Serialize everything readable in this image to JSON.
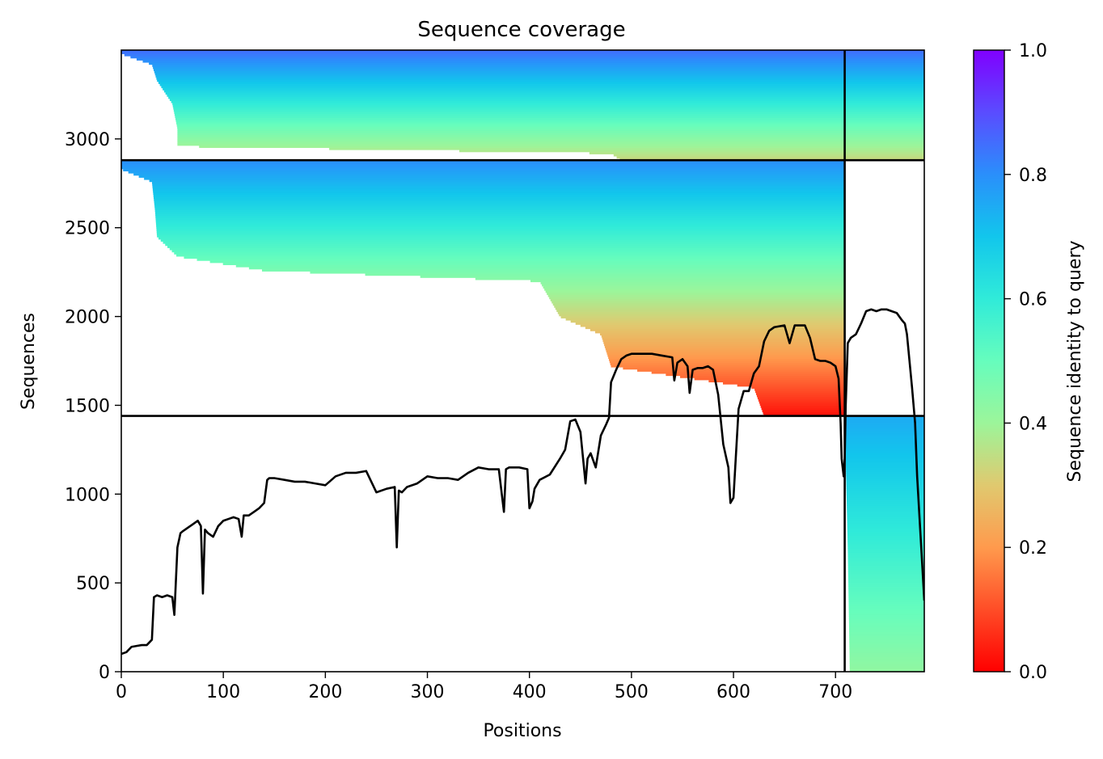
{
  "chart_data": {
    "type": "heatmap",
    "title": "Sequence coverage",
    "xlabel": "Positions",
    "ylabel": "Sequences",
    "xlim": [
      0,
      787
    ],
    "ylim": [
      0,
      3500
    ],
    "x_ticks": [
      0,
      100,
      200,
      300,
      400,
      500,
      600,
      700
    ],
    "y_ticks": [
      0,
      500,
      1000,
      1500,
      2000,
      2500,
      3000
    ],
    "colorbar": {
      "label": "Sequence identity to query",
      "range": [
        0,
        1
      ],
      "ticks": [
        0.0,
        0.2,
        0.4,
        0.6,
        0.8,
        1.0
      ],
      "tick_labels": [
        "0.0",
        "0.2",
        "0.4",
        "0.6",
        "0.8",
        "1.0"
      ],
      "colormap": "rainbow_r"
    },
    "segment_boundaries": {
      "x": 709,
      "y": [
        1440,
        2880
      ]
    },
    "blocks": [
      {
        "x_range": [
          709,
          787
        ],
        "y_range": [
          0,
          1440
        ],
        "identity_top": 0.75,
        "identity_bottom": 0.42,
        "coverage_profile": [
          [
            0,
            714
          ],
          [
            700,
            712
          ],
          [
            1440,
            709
          ]
        ]
      },
      {
        "x_range": [
          0,
          709
        ],
        "y_range": [
          1440,
          2880
        ],
        "identity_top": 0.8,
        "identity_bottom": 0.02,
        "coverage_profile": [
          [
            1440,
            630
          ],
          [
            1600,
            620
          ],
          [
            1720,
            480
          ],
          [
            1900,
            470
          ],
          [
            2000,
            430
          ],
          [
            2100,
            420
          ],
          [
            2200,
            410
          ],
          [
            2260,
            140
          ],
          [
            2340,
            55
          ],
          [
            2450,
            35
          ],
          [
            2600,
            33
          ],
          [
            2760,
            30
          ],
          [
            2830,
            0
          ],
          [
            2880,
            0
          ]
        ]
      },
      {
        "x_range": [
          0,
          787
        ],
        "y_range": [
          2880,
          3500
        ],
        "identity_top": 0.85,
        "identity_bottom": 0.33,
        "coverage_profile": [
          [
            2880,
            490
          ],
          [
            2920,
            480
          ],
          [
            2960,
            55
          ],
          [
            3060,
            55
          ],
          [
            3200,
            50
          ],
          [
            3330,
            35
          ],
          [
            3420,
            30
          ],
          [
            3480,
            0
          ],
          [
            3500,
            0
          ]
        ]
      }
    ],
    "series": [
      {
        "type": "line",
        "color": "#000000",
        "x": [
          0,
          5,
          10,
          15,
          20,
          25,
          30,
          32,
          35,
          40,
          45,
          50,
          52,
          55,
          58,
          60,
          65,
          70,
          75,
          78,
          80,
          82,
          85,
          90,
          95,
          100,
          105,
          110,
          115,
          118,
          120,
          125,
          130,
          135,
          140,
          143,
          145,
          150,
          160,
          170,
          180,
          190,
          200,
          210,
          220,
          230,
          240,
          250,
          260,
          268,
          270,
          272,
          275,
          280,
          290,
          300,
          310,
          320,
          330,
          340,
          350,
          360,
          370,
          375,
          377,
          380,
          390,
          398,
          400,
          403,
          405,
          410,
          420,
          430,
          435,
          440,
          445,
          450,
          455,
          457,
          460,
          465,
          470,
          475,
          478,
          480,
          485,
          490,
          495,
          500,
          510,
          520,
          530,
          540,
          542,
          545,
          550,
          555,
          557,
          560,
          565,
          570,
          575,
          580,
          585,
          590,
          595,
          597,
          600,
          605,
          610,
          615,
          620,
          625,
          630,
          635,
          640,
          650,
          655,
          660,
          665,
          670,
          675,
          680,
          685,
          690,
          695,
          700,
          703,
          705,
          706,
          707,
          708,
          709,
          710,
          712,
          715,
          720,
          725,
          730,
          735,
          740,
          745,
          750,
          755,
          760,
          765,
          768,
          770,
          775,
          778,
          780,
          783,
          785,
          787
        ],
        "y": [
          100,
          110,
          140,
          145,
          150,
          150,
          180,
          420,
          430,
          420,
          430,
          420,
          320,
          700,
          780,
          790,
          810,
          830,
          850,
          820,
          440,
          800,
          780,
          760,
          820,
          850,
          860,
          870,
          860,
          760,
          880,
          880,
          900,
          920,
          950,
          1080,
          1090,
          1090,
          1080,
          1070,
          1070,
          1060,
          1050,
          1100,
          1120,
          1120,
          1130,
          1010,
          1030,
          1040,
          700,
          1020,
          1010,
          1040,
          1060,
          1100,
          1090,
          1090,
          1080,
          1120,
          1150,
          1140,
          1140,
          900,
          1140,
          1150,
          1150,
          1140,
          920,
          960,
          1030,
          1080,
          1110,
          1200,
          1250,
          1410,
          1420,
          1350,
          1060,
          1200,
          1230,
          1150,
          1330,
          1390,
          1430,
          1630,
          1700,
          1760,
          1780,
          1790,
          1790,
          1790,
          1780,
          1770,
          1640,
          1740,
          1760,
          1720,
          1570,
          1700,
          1710,
          1710,
          1720,
          1700,
          1560,
          1280,
          1150,
          950,
          980,
          1480,
          1580,
          1580,
          1680,
          1720,
          1860,
          1920,
          1940,
          1950,
          1850,
          1950,
          1950,
          1950,
          1880,
          1760,
          1750,
          1750,
          1740,
          1720,
          1650,
          1400,
          1200,
          1150,
          1100,
          1200,
          1500,
          1850,
          1880,
          1900,
          1960,
          2030,
          2040,
          2030,
          2040,
          2040,
          2030,
          2020,
          1980,
          1960,
          1900,
          1600,
          1400,
          1100,
          800,
          600,
          400
        ]
      }
    ]
  }
}
